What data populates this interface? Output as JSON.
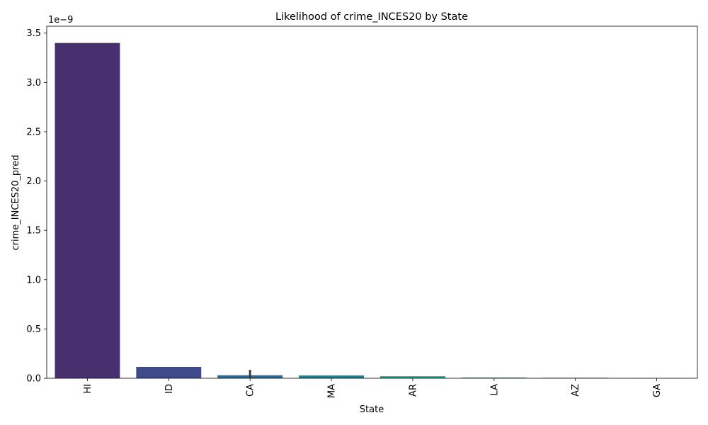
{
  "chart_data": {
    "type": "bar",
    "title": "Likelihood of crime_INCES20 by State",
    "xlabel": "State",
    "ylabel": "crime_INCES20_pred",
    "y_offset_label": "1e−9",
    "categories": [
      "HI",
      "ID",
      "CA",
      "MA",
      "AR",
      "LA",
      "AZ",
      "GA"
    ],
    "values": [
      3.4,
      0.115,
      0.03,
      0.028,
      0.02,
      0.008,
      0.006,
      0.002
    ],
    "error_bars": [
      null,
      null,
      [
        0.0,
        0.085
      ],
      null,
      null,
      null,
      null,
      null
    ],
    "colors": [
      "#482f6e",
      "#3e4a89",
      "#31688e",
      "#277f8e",
      "#1f9e89",
      "#35b779",
      "#6ece58",
      "#b5de2b"
    ],
    "yticks": [
      0.0,
      0.5,
      1.0,
      1.5,
      2.0,
      2.5,
      3.0,
      3.5
    ],
    "ytick_labels": [
      "0.0",
      "0.5",
      "1.0",
      "1.5",
      "2.0",
      "2.5",
      "3.0",
      "3.5"
    ],
    "ylim": [
      0,
      3.57
    ],
    "grid": false,
    "legend": "none"
  }
}
